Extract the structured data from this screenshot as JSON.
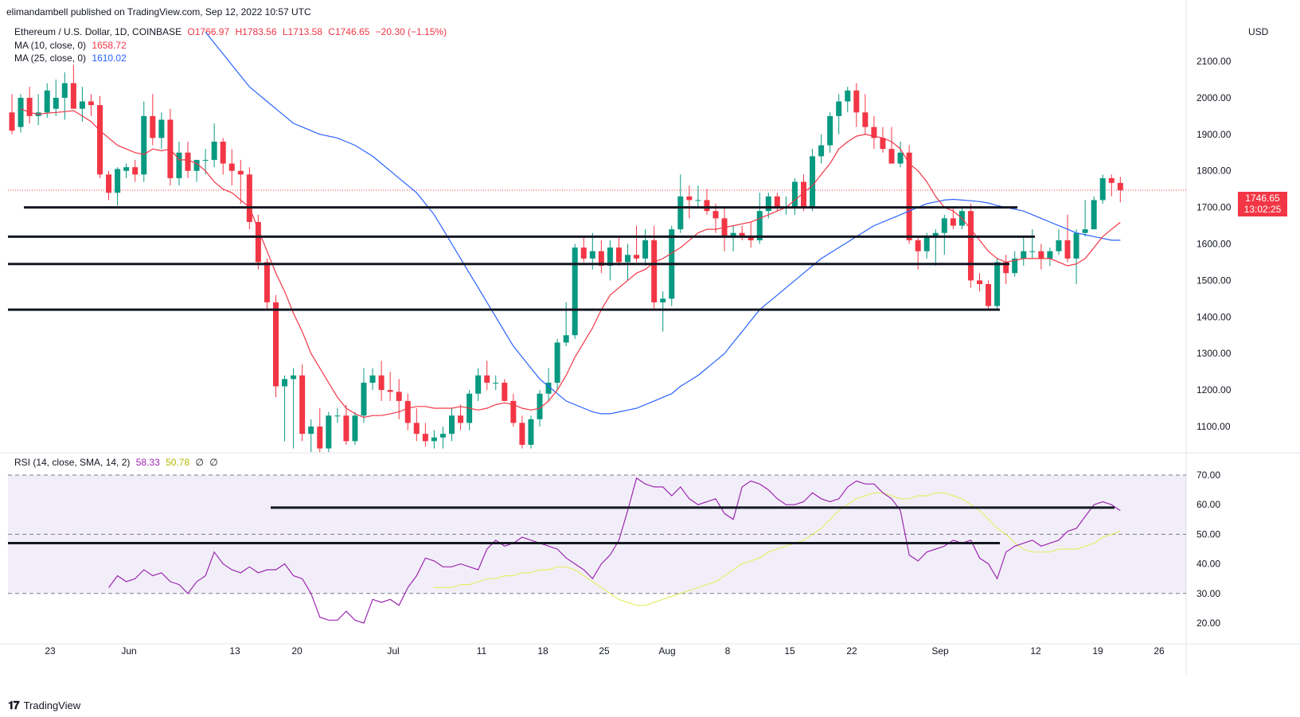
{
  "header": {
    "published_by": "elimandambell published on TradingView.com, Sep 12, 2022 10:57 UTC"
  },
  "legend": {
    "symbol": "Ethereum / U.S. Dollar, 1D, COINBASE",
    "open": "O1766.97",
    "high": "H1783.56",
    "low": "L1713.58",
    "close": "C1746.65",
    "change": "−20.30 (−1.15%)",
    "ma10_label": "MA (10, close, 0)",
    "ma10_value": "1658.72",
    "ma25_label": "MA (25, close, 0)",
    "ma25_value": "1610.02",
    "rsi_label": "RSI (14, close, SMA, 14, 2)",
    "rsi_value": "58.33",
    "rsi_sma_value": "50.78",
    "rsi_extra1": "∅",
    "rsi_extra2": "∅"
  },
  "price_axis": {
    "currency": "USD",
    "ticks": [
      "2100.00",
      "2000.00",
      "1900.00",
      "1800.00",
      "1700.00",
      "1600.00",
      "1500.00",
      "1400.00",
      "1300.00",
      "1200.00",
      "1100.00"
    ]
  },
  "rsi_axis": {
    "ticks": [
      "70.00",
      "60.00",
      "50.00",
      "40.00",
      "30.00",
      "20.00"
    ]
  },
  "time_axis": {
    "labels": [
      "23",
      "Jun",
      "13",
      "20",
      "Jul",
      "11",
      "18",
      "25",
      "Aug",
      "8",
      "15",
      "22",
      "Sep",
      "12",
      "19",
      "26"
    ]
  },
  "last_price": {
    "value": "1746.65",
    "countdown": "13:02:25"
  },
  "colors": {
    "up": "#089981",
    "down": "#f23645",
    "ma10": "#f23645",
    "ma25": "#2962ff",
    "rsi": "#9c27b0",
    "rsi_sma": "#e6ee6a",
    "rsi_band": "#7e57c2"
  },
  "footer": {
    "brand": "TradingView"
  },
  "chart_data": {
    "type": "candlestick",
    "title": "Ethereum / U.S. Dollar, 1D, COINBASE",
    "ylim": [
      1030,
      2150
    ],
    "rsi_ylim": [
      15,
      75
    ],
    "candles": [
      {
        "o": 1960,
        "h": 2010,
        "l": 1900,
        "c": 1910
      },
      {
        "o": 1920,
        "h": 2010,
        "l": 1905,
        "c": 2000
      },
      {
        "o": 2000,
        "h": 2030,
        "l": 1930,
        "c": 1950
      },
      {
        "o": 1950,
        "h": 2010,
        "l": 1925,
        "c": 1960
      },
      {
        "o": 1960,
        "h": 2040,
        "l": 1945,
        "c": 2020
      },
      {
        "o": 1970,
        "h": 2050,
        "l": 1950,
        "c": 2000
      },
      {
        "o": 2000,
        "h": 2070,
        "l": 1940,
        "c": 2040
      },
      {
        "o": 2040,
        "h": 2090,
        "l": 1980,
        "c": 1970
      },
      {
        "o": 1970,
        "h": 2030,
        "l": 1935,
        "c": 1990
      },
      {
        "o": 1990,
        "h": 2010,
        "l": 1950,
        "c": 1980
      },
      {
        "o": 1980,
        "h": 2005,
        "l": 1780,
        "c": 1790
      },
      {
        "o": 1790,
        "h": 1800,
        "l": 1720,
        "c": 1740
      },
      {
        "o": 1740,
        "h": 1810,
        "l": 1705,
        "c": 1805
      },
      {
        "o": 1800,
        "h": 1820,
        "l": 1780,
        "c": 1810
      },
      {
        "o": 1810,
        "h": 1830,
        "l": 1770,
        "c": 1790
      },
      {
        "o": 1790,
        "h": 1990,
        "l": 1770,
        "c": 1950
      },
      {
        "o": 1950,
        "h": 2010,
        "l": 1870,
        "c": 1890
      },
      {
        "o": 1890,
        "h": 1960,
        "l": 1860,
        "c": 1940
      },
      {
        "o": 1940,
        "h": 1970,
        "l": 1760,
        "c": 1780
      },
      {
        "o": 1780,
        "h": 1880,
        "l": 1760,
        "c": 1850
      },
      {
        "o": 1850,
        "h": 1880,
        "l": 1780,
        "c": 1800
      },
      {
        "o": 1800,
        "h": 1830,
        "l": 1770,
        "c": 1830
      },
      {
        "o": 1830,
        "h": 1860,
        "l": 1790,
        "c": 1830
      },
      {
        "o": 1830,
        "h": 1930,
        "l": 1810,
        "c": 1880
      },
      {
        "o": 1880,
        "h": 1890,
        "l": 1790,
        "c": 1820
      },
      {
        "o": 1820,
        "h": 1860,
        "l": 1760,
        "c": 1800
      },
      {
        "o": 1800,
        "h": 1830,
        "l": 1710,
        "c": 1790
      },
      {
        "o": 1790,
        "h": 1810,
        "l": 1640,
        "c": 1660
      },
      {
        "o": 1660,
        "h": 1680,
        "l": 1530,
        "c": 1550
      },
      {
        "o": 1550,
        "h": 1560,
        "l": 1420,
        "c": 1440
      },
      {
        "o": 1440,
        "h": 1460,
        "l": 1180,
        "c": 1210
      },
      {
        "o": 1210,
        "h": 1240,
        "l": 1060,
        "c": 1230
      },
      {
        "o": 1230,
        "h": 1260,
        "l": 1040,
        "c": 1240
      },
      {
        "o": 1240,
        "h": 1270,
        "l": 1060,
        "c": 1080
      },
      {
        "o": 1080,
        "h": 1120,
        "l": 1030,
        "c": 1100
      },
      {
        "o": 1100,
        "h": 1150,
        "l": 1030,
        "c": 1040
      },
      {
        "o": 1040,
        "h": 1140,
        "l": 1030,
        "c": 1130
      },
      {
        "o": 1130,
        "h": 1150,
        "l": 1110,
        "c": 1130
      },
      {
        "o": 1130,
        "h": 1160,
        "l": 1050,
        "c": 1060
      },
      {
        "o": 1060,
        "h": 1140,
        "l": 1050,
        "c": 1130
      },
      {
        "o": 1130,
        "h": 1260,
        "l": 1110,
        "c": 1220
      },
      {
        "o": 1220,
        "h": 1260,
        "l": 1200,
        "c": 1240
      },
      {
        "o": 1240,
        "h": 1280,
        "l": 1170,
        "c": 1200
      },
      {
        "o": 1200,
        "h": 1250,
        "l": 1170,
        "c": 1195
      },
      {
        "o": 1195,
        "h": 1230,
        "l": 1120,
        "c": 1170
      },
      {
        "o": 1170,
        "h": 1190,
        "l": 1090,
        "c": 1110
      },
      {
        "o": 1110,
        "h": 1150,
        "l": 1060,
        "c": 1080
      },
      {
        "o": 1080,
        "h": 1110,
        "l": 1045,
        "c": 1060
      },
      {
        "o": 1060,
        "h": 1090,
        "l": 1040,
        "c": 1070
      },
      {
        "o": 1070,
        "h": 1100,
        "l": 1040,
        "c": 1080
      },
      {
        "o": 1080,
        "h": 1150,
        "l": 1060,
        "c": 1130
      },
      {
        "o": 1130,
        "h": 1160,
        "l": 1090,
        "c": 1110
      },
      {
        "o": 1110,
        "h": 1200,
        "l": 1090,
        "c": 1190
      },
      {
        "o": 1190,
        "h": 1260,
        "l": 1170,
        "c": 1240
      },
      {
        "o": 1240,
        "h": 1280,
        "l": 1200,
        "c": 1220
      },
      {
        "o": 1220,
        "h": 1240,
        "l": 1200,
        "c": 1220
      },
      {
        "o": 1220,
        "h": 1230,
        "l": 1170,
        "c": 1170
      },
      {
        "o": 1170,
        "h": 1190,
        "l": 1100,
        "c": 1110
      },
      {
        "o": 1110,
        "h": 1130,
        "l": 1040,
        "c": 1050
      },
      {
        "o": 1050,
        "h": 1130,
        "l": 1040,
        "c": 1120
      },
      {
        "o": 1120,
        "h": 1200,
        "l": 1100,
        "c": 1190
      },
      {
        "o": 1190,
        "h": 1260,
        "l": 1170,
        "c": 1220
      },
      {
        "o": 1220,
        "h": 1340,
        "l": 1200,
        "c": 1330
      },
      {
        "o": 1330,
        "h": 1440,
        "l": 1320,
        "c": 1350
      },
      {
        "o": 1350,
        "h": 1600,
        "l": 1340,
        "c": 1590
      },
      {
        "o": 1590,
        "h": 1620,
        "l": 1550,
        "c": 1560
      },
      {
        "o": 1560,
        "h": 1630,
        "l": 1530,
        "c": 1580
      },
      {
        "o": 1580,
        "h": 1610,
        "l": 1520,
        "c": 1540
      },
      {
        "o": 1540,
        "h": 1610,
        "l": 1500,
        "c": 1590
      },
      {
        "o": 1590,
        "h": 1620,
        "l": 1540,
        "c": 1550
      },
      {
        "o": 1550,
        "h": 1600,
        "l": 1500,
        "c": 1570
      },
      {
        "o": 1570,
        "h": 1650,
        "l": 1550,
        "c": 1560
      },
      {
        "o": 1560,
        "h": 1640,
        "l": 1540,
        "c": 1610
      },
      {
        "o": 1610,
        "h": 1650,
        "l": 1420,
        "c": 1440
      },
      {
        "o": 1440,
        "h": 1470,
        "l": 1360,
        "c": 1450
      },
      {
        "o": 1450,
        "h": 1650,
        "l": 1430,
        "c": 1640
      },
      {
        "o": 1640,
        "h": 1790,
        "l": 1630,
        "c": 1730
      },
      {
        "o": 1730,
        "h": 1760,
        "l": 1670,
        "c": 1720
      },
      {
        "o": 1720,
        "h": 1760,
        "l": 1700,
        "c": 1720
      },
      {
        "o": 1720,
        "h": 1750,
        "l": 1680,
        "c": 1690
      },
      {
        "o": 1690,
        "h": 1710,
        "l": 1630,
        "c": 1670
      },
      {
        "o": 1670,
        "h": 1700,
        "l": 1580,
        "c": 1620
      },
      {
        "o": 1620,
        "h": 1650,
        "l": 1580,
        "c": 1630
      },
      {
        "o": 1630,
        "h": 1650,
        "l": 1610,
        "c": 1620
      },
      {
        "o": 1620,
        "h": 1660,
        "l": 1590,
        "c": 1610
      },
      {
        "o": 1610,
        "h": 1740,
        "l": 1600,
        "c": 1690
      },
      {
        "o": 1690,
        "h": 1740,
        "l": 1670,
        "c": 1730
      },
      {
        "o": 1730,
        "h": 1740,
        "l": 1690,
        "c": 1700
      },
      {
        "o": 1700,
        "h": 1730,
        "l": 1680,
        "c": 1700
      },
      {
        "o": 1700,
        "h": 1780,
        "l": 1680,
        "c": 1770
      },
      {
        "o": 1770,
        "h": 1790,
        "l": 1690,
        "c": 1700
      },
      {
        "o": 1700,
        "h": 1860,
        "l": 1690,
        "c": 1840
      },
      {
        "o": 1840,
        "h": 1900,
        "l": 1820,
        "c": 1870
      },
      {
        "o": 1870,
        "h": 1960,
        "l": 1850,
        "c": 1950
      },
      {
        "o": 1950,
        "h": 2010,
        "l": 1900,
        "c": 1990
      },
      {
        "o": 1990,
        "h": 2030,
        "l": 1960,
        "c": 2020
      },
      {
        "o": 2020,
        "h": 2040,
        "l": 1920,
        "c": 1960
      },
      {
        "o": 1960,
        "h": 2010,
        "l": 1900,
        "c": 1920
      },
      {
        "o": 1920,
        "h": 1950,
        "l": 1860,
        "c": 1890
      },
      {
        "o": 1890,
        "h": 1920,
        "l": 1850,
        "c": 1860
      },
      {
        "o": 1860,
        "h": 1920,
        "l": 1820,
        "c": 1820
      },
      {
        "o": 1820,
        "h": 1880,
        "l": 1810,
        "c": 1850
      },
      {
        "o": 1850,
        "h": 1870,
        "l": 1600,
        "c": 1610
      },
      {
        "o": 1610,
        "h": 1620,
        "l": 1530,
        "c": 1580
      },
      {
        "o": 1580,
        "h": 1630,
        "l": 1560,
        "c": 1620
      },
      {
        "o": 1620,
        "h": 1640,
        "l": 1540,
        "c": 1630
      },
      {
        "o": 1630,
        "h": 1680,
        "l": 1570,
        "c": 1670
      },
      {
        "o": 1670,
        "h": 1700,
        "l": 1640,
        "c": 1650
      },
      {
        "o": 1650,
        "h": 1700,
        "l": 1640,
        "c": 1690
      },
      {
        "o": 1690,
        "h": 1710,
        "l": 1480,
        "c": 1500
      },
      {
        "o": 1500,
        "h": 1520,
        "l": 1470,
        "c": 1490
      },
      {
        "o": 1490,
        "h": 1500,
        "l": 1420,
        "c": 1430
      },
      {
        "o": 1430,
        "h": 1560,
        "l": 1420,
        "c": 1550
      },
      {
        "o": 1550,
        "h": 1570,
        "l": 1490,
        "c": 1520
      },
      {
        "o": 1520,
        "h": 1580,
        "l": 1510,
        "c": 1560
      },
      {
        "o": 1560,
        "h": 1620,
        "l": 1540,
        "c": 1580
      },
      {
        "o": 1580,
        "h": 1640,
        "l": 1560,
        "c": 1580
      },
      {
        "o": 1580,
        "h": 1600,
        "l": 1530,
        "c": 1560
      },
      {
        "o": 1560,
        "h": 1590,
        "l": 1540,
        "c": 1580
      },
      {
        "o": 1580,
        "h": 1640,
        "l": 1570,
        "c": 1610
      },
      {
        "o": 1610,
        "h": 1680,
        "l": 1550,
        "c": 1560
      },
      {
        "o": 1560,
        "h": 1640,
        "l": 1490,
        "c": 1630
      },
      {
        "o": 1630,
        "h": 1720,
        "l": 1620,
        "c": 1640
      },
      {
        "o": 1640,
        "h": 1730,
        "l": 1640,
        "c": 1720
      },
      {
        "o": 1720,
        "h": 1790,
        "l": 1710,
        "c": 1780
      },
      {
        "o": 1780,
        "h": 1790,
        "l": 1730,
        "c": 1767
      },
      {
        "o": 1767,
        "h": 1784,
        "l": 1714,
        "c": 1747
      }
    ],
    "ma10": [
      1970,
      1960,
      1955,
      1958,
      1960,
      1962,
      1965,
      1950,
      1935,
      1910,
      1890,
      1870,
      1860,
      1850,
      1845,
      1860,
      1855,
      1860,
      1830,
      1830,
      1820,
      1800,
      1770,
      1750,
      1740,
      1720,
      1700,
      1640,
      1580,
      1520,
      1470,
      1410,
      1360,
      1300,
      1260,
      1220,
      1180,
      1150,
      1135,
      1125,
      1130,
      1130,
      1135,
      1140,
      1150,
      1155,
      1155,
      1150,
      1150,
      1150,
      1155,
      1150,
      1145,
      1150,
      1160,
      1165,
      1160,
      1150,
      1145,
      1150,
      1170,
      1200,
      1240,
      1290,
      1330,
      1370,
      1420,
      1460,
      1480,
      1500,
      1520,
      1530,
      1550,
      1560,
      1575,
      1590,
      1610,
      1630,
      1640,
      1640,
      1645,
      1650,
      1655,
      1660,
      1670,
      1680,
      1690,
      1700,
      1720,
      1740,
      1760,
      1790,
      1820,
      1860,
      1880,
      1895,
      1900,
      1895,
      1890,
      1880,
      1860,
      1820,
      1800,
      1770,
      1730,
      1700,
      1690,
      1670,
      1640,
      1610,
      1580,
      1560,
      1550,
      1555,
      1560,
      1560,
      1560,
      1560,
      1550,
      1540,
      1545,
      1560,
      1590,
      1620,
      1640,
      1659
    ],
    "ma25": [
      2180,
      2150,
      2120,
      2090,
      2060,
      2030,
      2010,
      1990,
      1970,
      1950,
      1930,
      1920,
      1910,
      1900,
      1895,
      1890,
      1880,
      1870,
      1855,
      1840,
      1820,
      1800,
      1780,
      1760,
      1740,
      1710,
      1680,
      1640,
      1600,
      1560,
      1520,
      1480,
      1440,
      1400,
      1360,
      1320,
      1290,
      1260,
      1230,
      1210,
      1190,
      1170,
      1160,
      1150,
      1140,
      1135,
      1135,
      1140,
      1145,
      1150,
      1160,
      1170,
      1180,
      1190,
      1210,
      1225,
      1240,
      1260,
      1280,
      1300,
      1330,
      1360,
      1390,
      1420,
      1440,
      1460,
      1480,
      1500,
      1520,
      1540,
      1560,
      1575,
      1590,
      1605,
      1620,
      1635,
      1650,
      1660,
      1670,
      1680,
      1690,
      1700,
      1710,
      1715,
      1720,
      1722,
      1720,
      1718,
      1716,
      1712,
      1705,
      1700,
      1695,
      1690,
      1680,
      1670,
      1660,
      1650,
      1640,
      1630,
      1625,
      1620,
      1615,
      1610,
      1610
    ],
    "rsi": [
      32,
      36,
      34,
      35,
      38,
      36,
      37,
      34,
      33,
      30,
      34,
      36,
      44,
      40,
      38,
      37,
      39,
      37,
      38,
      38,
      40,
      36,
      35,
      30,
      22,
      21,
      21,
      24,
      21,
      20,
      28,
      27,
      28,
      26,
      32,
      36,
      42,
      41,
      39,
      39,
      40,
      39,
      38,
      45,
      48,
      46,
      47,
      49,
      48,
      47,
      46,
      45,
      42,
      40,
      38,
      35,
      40,
      43,
      48,
      58,
      69,
      67,
      66,
      66,
      63,
      66,
      62,
      60,
      61,
      62,
      57,
      55,
      66,
      68,
      67,
      65,
      62,
      60,
      60,
      61,
      64,
      62,
      61,
      62,
      66,
      68,
      67,
      67,
      64,
      62,
      58,
      43,
      41,
      44,
      45,
      46,
      48,
      47,
      48,
      42,
      40,
      35,
      44,
      46,
      47,
      48,
      46,
      47,
      48,
      51,
      52,
      56,
      60,
      61,
      60,
      58
    ],
    "rsi_sma": [
      32,
      32,
      32,
      33,
      33,
      34,
      35,
      35,
      36,
      36,
      37,
      37,
      38,
      38,
      39,
      39,
      38,
      36,
      34,
      32,
      30,
      28,
      27,
      26,
      26,
      27,
      28,
      29,
      30,
      31,
      32,
      33,
      34,
      36,
      38,
      40,
      41,
      42,
      44,
      45,
      46,
      47,
      48,
      50,
      52,
      55,
      58,
      60,
      62,
      63,
      64,
      64,
      63,
      62,
      62,
      63,
      63,
      64,
      64,
      63,
      62,
      60,
      58,
      55,
      52,
      50,
      47,
      45,
      44,
      44,
      44,
      45,
      45,
      45,
      46,
      47,
      49,
      50,
      51
    ],
    "horizontal_levels": [
      {
        "pane": "price",
        "value": 1700
      },
      {
        "pane": "price",
        "value": 1620
      },
      {
        "pane": "price",
        "value": 1545
      },
      {
        "pane": "price",
        "value": 1420
      },
      {
        "pane": "rsi",
        "value": 59
      },
      {
        "pane": "rsi",
        "value": 47
      }
    ],
    "rsi_bands": {
      "upper": 70,
      "middle": 50,
      "lower": 30
    }
  }
}
